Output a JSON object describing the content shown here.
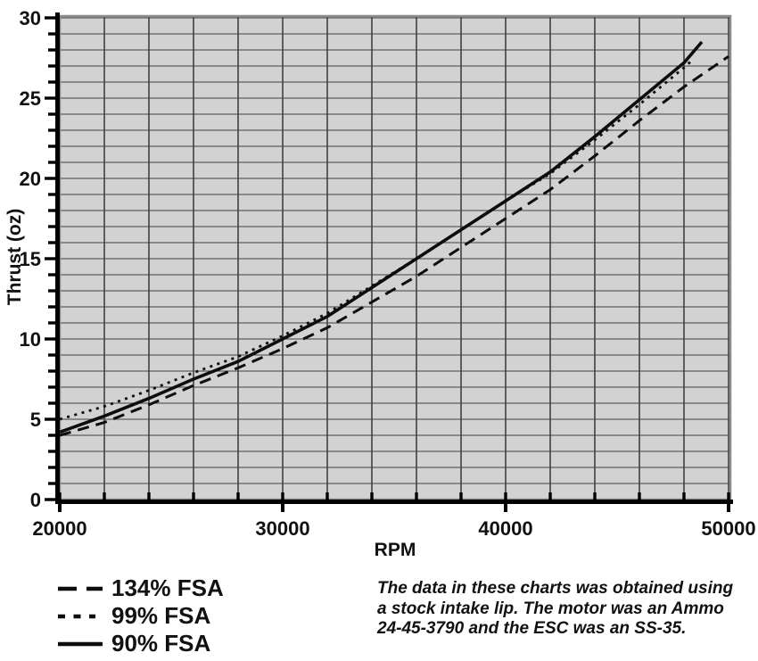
{
  "chart": {
    "y_axis_title": "Thrust (oz)",
    "x_axis_title": "RPM"
  },
  "chart_data": {
    "type": "line",
    "title": "",
    "xlabel": "RPM",
    "ylabel": "Thrust (oz)",
    "xlim": [
      20000,
      50000
    ],
    "ylim": [
      0,
      30
    ],
    "x_grid_step": 2000,
    "y_grid_step": 1,
    "grid": true,
    "legend_position": "bottom-left",
    "x_ticks": [
      {
        "value": 20000,
        "label": "20000"
      },
      {
        "value": 30000,
        "label": "30000"
      },
      {
        "value": 40000,
        "label": "40000"
      },
      {
        "value": 50000,
        "label": "50000"
      }
    ],
    "y_ticks": [
      {
        "value": 0,
        "label": "0"
      },
      {
        "value": 5,
        "label": "5"
      },
      {
        "value": 10,
        "label": "10"
      },
      {
        "value": 15,
        "label": "15"
      },
      {
        "value": 20,
        "label": "20"
      },
      {
        "value": 25,
        "label": "25"
      },
      {
        "value": 30,
        "label": "30"
      }
    ],
    "series": [
      {
        "name": "134% FSA",
        "line_style": "dashed",
        "points": [
          [
            20000,
            4.0
          ],
          [
            22000,
            4.8
          ],
          [
            24000,
            5.9
          ],
          [
            26000,
            7.1
          ],
          [
            28000,
            8.2
          ],
          [
            30000,
            9.4
          ],
          [
            32000,
            10.7
          ],
          [
            34000,
            12.3
          ],
          [
            36000,
            13.9
          ],
          [
            38000,
            15.7
          ],
          [
            40000,
            17.5
          ],
          [
            42000,
            19.3
          ],
          [
            44000,
            21.4
          ],
          [
            46000,
            23.6
          ],
          [
            48000,
            25.7
          ],
          [
            50000,
            27.6
          ]
        ]
      },
      {
        "name": "99% FSA",
        "line_style": "dotted",
        "points": [
          [
            20000,
            5.0
          ],
          [
            22000,
            5.8
          ],
          [
            24000,
            6.8
          ],
          [
            26000,
            7.9
          ],
          [
            28000,
            8.9
          ],
          [
            30000,
            10.2
          ],
          [
            32000,
            11.6
          ],
          [
            34000,
            13.3
          ],
          [
            36000,
            15.0
          ],
          [
            38000,
            16.8
          ],
          [
            40000,
            18.6
          ],
          [
            42000,
            20.3
          ],
          [
            44000,
            22.4
          ],
          [
            46000,
            24.6
          ],
          [
            48000,
            26.9
          ],
          [
            48400,
            27.4
          ]
        ]
      },
      {
        "name": "90% FSA",
        "line_style": "solid",
        "points": [
          [
            20000,
            4.2
          ],
          [
            22000,
            5.2
          ],
          [
            24000,
            6.3
          ],
          [
            26000,
            7.5
          ],
          [
            28000,
            8.6
          ],
          [
            30000,
            10.0
          ],
          [
            32000,
            11.4
          ],
          [
            34000,
            13.2
          ],
          [
            36000,
            15.0
          ],
          [
            38000,
            16.8
          ],
          [
            40000,
            18.6
          ],
          [
            42000,
            20.4
          ],
          [
            44000,
            22.6
          ],
          [
            46000,
            24.9
          ],
          [
            48000,
            27.2
          ],
          [
            48800,
            28.5
          ]
        ]
      }
    ]
  },
  "note": {
    "lines": [
      "The data in these charts was obtained using",
      "a stock intake lip. The motor was an Ammo",
      "24-45-3790 and the ESC was an SS-35."
    ]
  },
  "colors": {
    "page_bg": "#ffffff",
    "plot_bg": "#d2d2d2",
    "grid": "#404040",
    "frame": "#8c8c8c",
    "axis": "#000000",
    "line": "#0d0d0d"
  }
}
